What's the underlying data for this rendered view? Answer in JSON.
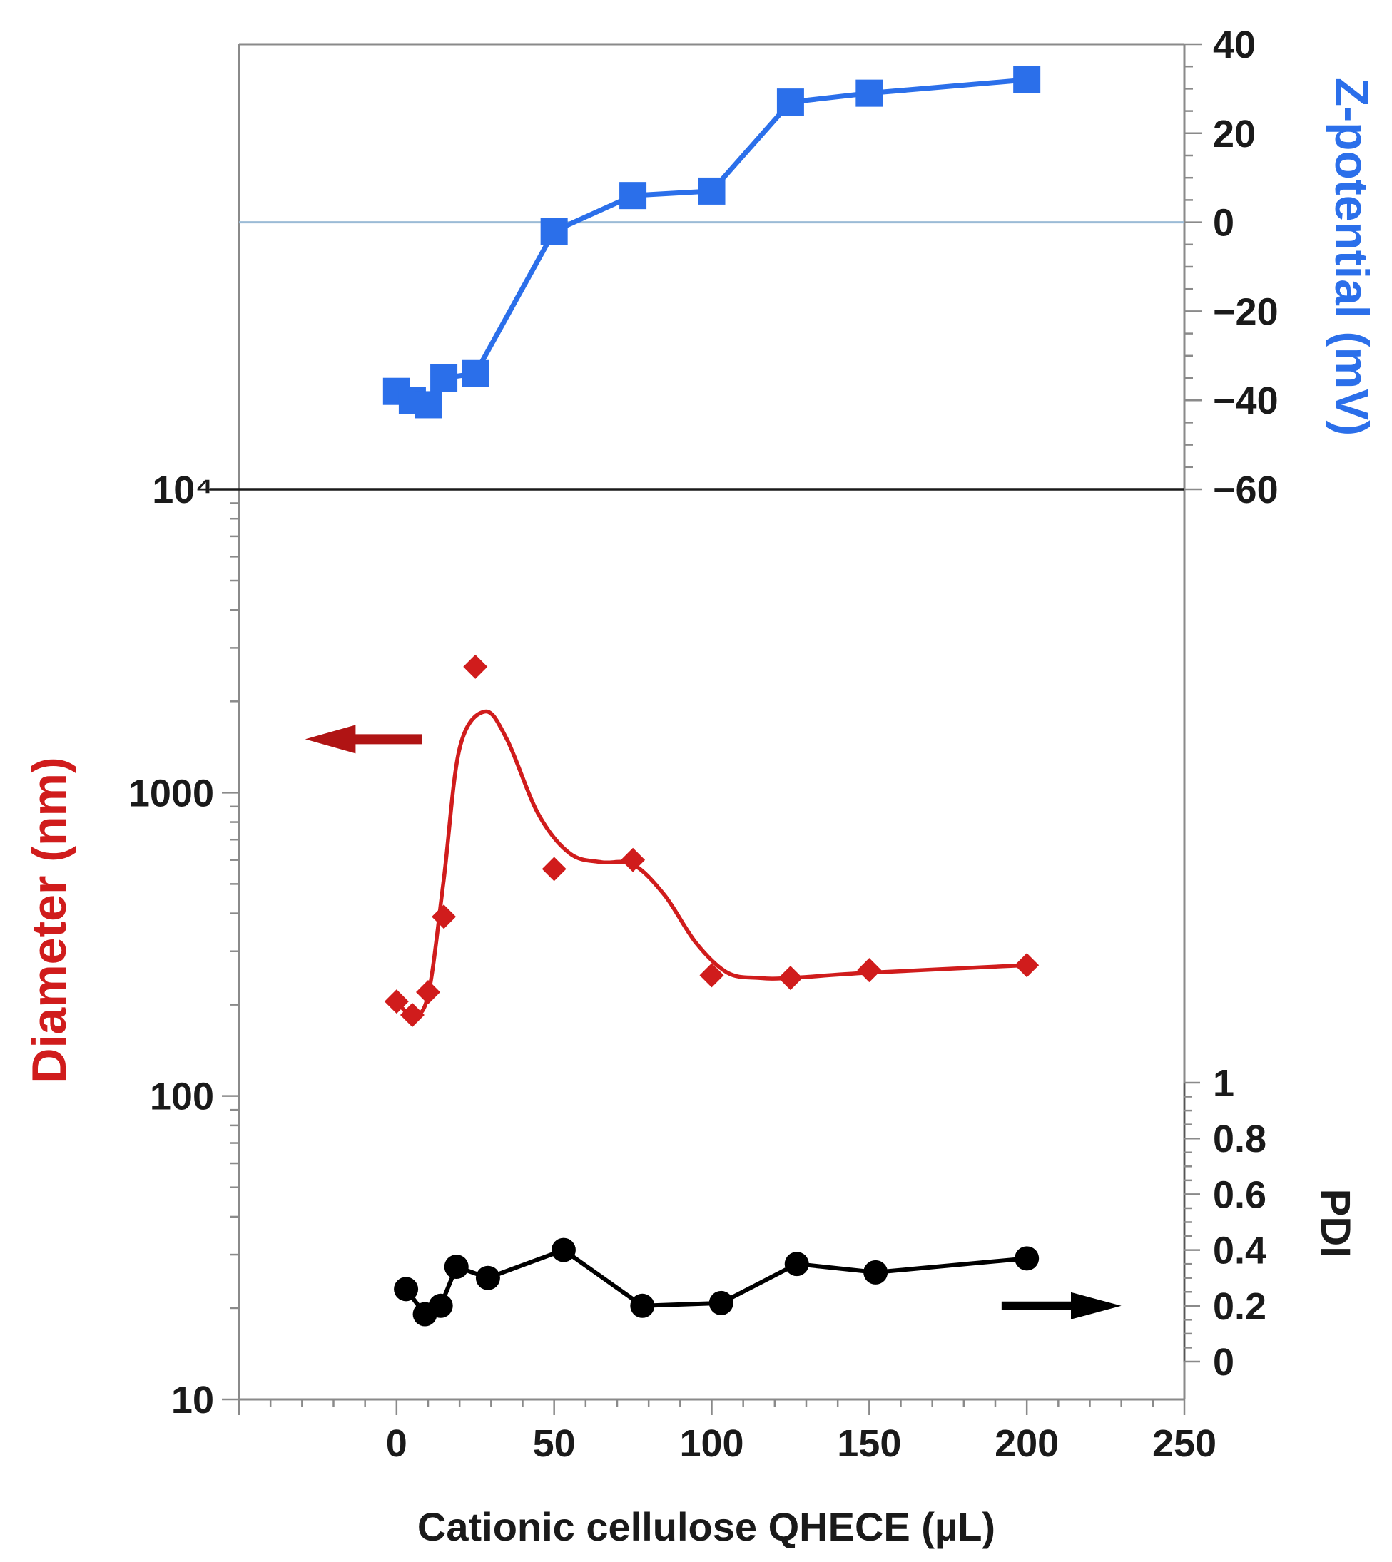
{
  "chart_data": {
    "type": "line",
    "xlabel": "Cationic cellulose QHECE (µL)",
    "x_ticks": [
      0,
      50,
      100,
      150,
      200,
      250
    ],
    "xlim": [
      -50,
      250
    ],
    "panels": {
      "zeta": {
        "ylabel": "Z-potential (mV)",
        "ylim": [
          -60,
          40
        ],
        "y_ticks": [
          "−60",
          "−40",
          "−20",
          "0",
          "20",
          "40"
        ],
        "y_tick_values": [
          -60,
          -40,
          -20,
          0,
          20,
          40
        ],
        "color": "#2b6fea",
        "zero_line_color": "#9bbbd6"
      },
      "diameter": {
        "ylabel": "Diameter (nm)",
        "scale": "log",
        "ylim": [
          10,
          10000
        ],
        "y_ticks": [
          "10",
          "100",
          "1000",
          "10⁴"
        ],
        "y_tick_values": [
          10,
          100,
          1000,
          10000
        ],
        "color": "#d01c1c",
        "arrow_color": "#b01414"
      },
      "pdi": {
        "ylabel": "PDI",
        "ylim": [
          0,
          1
        ],
        "y_ticks": [
          "0",
          "0.2",
          "0.4",
          "0.6",
          "0.8",
          "1"
        ],
        "y_tick_values": [
          0,
          0.2,
          0.4,
          0.6,
          0.8,
          1
        ],
        "color": "#000000"
      }
    },
    "series": [
      {
        "panel": "zeta",
        "marker": "square",
        "x": [
          0,
          5,
          10,
          15,
          25,
          50,
          75,
          100,
          125,
          150,
          200
        ],
        "y": [
          -38,
          -40,
          -41,
          -35,
          -34,
          -2,
          6,
          7,
          27,
          29,
          32
        ]
      },
      {
        "panel": "diameter",
        "marker": "diamond",
        "x": [
          0,
          5,
          10,
          15,
          25,
          50,
          75,
          100,
          125,
          150,
          200
        ],
        "y": [
          205,
          185,
          220,
          390,
          2600,
          560,
          600,
          250,
          245,
          260,
          270
        ],
        "fit_x": [
          0,
          5,
          10,
          15,
          20,
          28,
          35,
          45,
          55,
          65,
          75,
          85,
          95,
          105,
          115,
          125,
          150,
          200
        ],
        "fit_y": [
          205,
          185,
          215,
          520,
          1400,
          1850,
          1500,
          850,
          630,
          590,
          580,
          460,
          320,
          255,
          245,
          245,
          255,
          270
        ]
      },
      {
        "panel": "pdi",
        "marker": "circle",
        "x": [
          3,
          9,
          14,
          19,
          29,
          53,
          78,
          103,
          127,
          152,
          200
        ],
        "y": [
          0.26,
          0.17,
          0.2,
          0.34,
          0.3,
          0.4,
          0.2,
          0.21,
          0.35,
          0.32,
          0.37
        ]
      }
    ]
  }
}
